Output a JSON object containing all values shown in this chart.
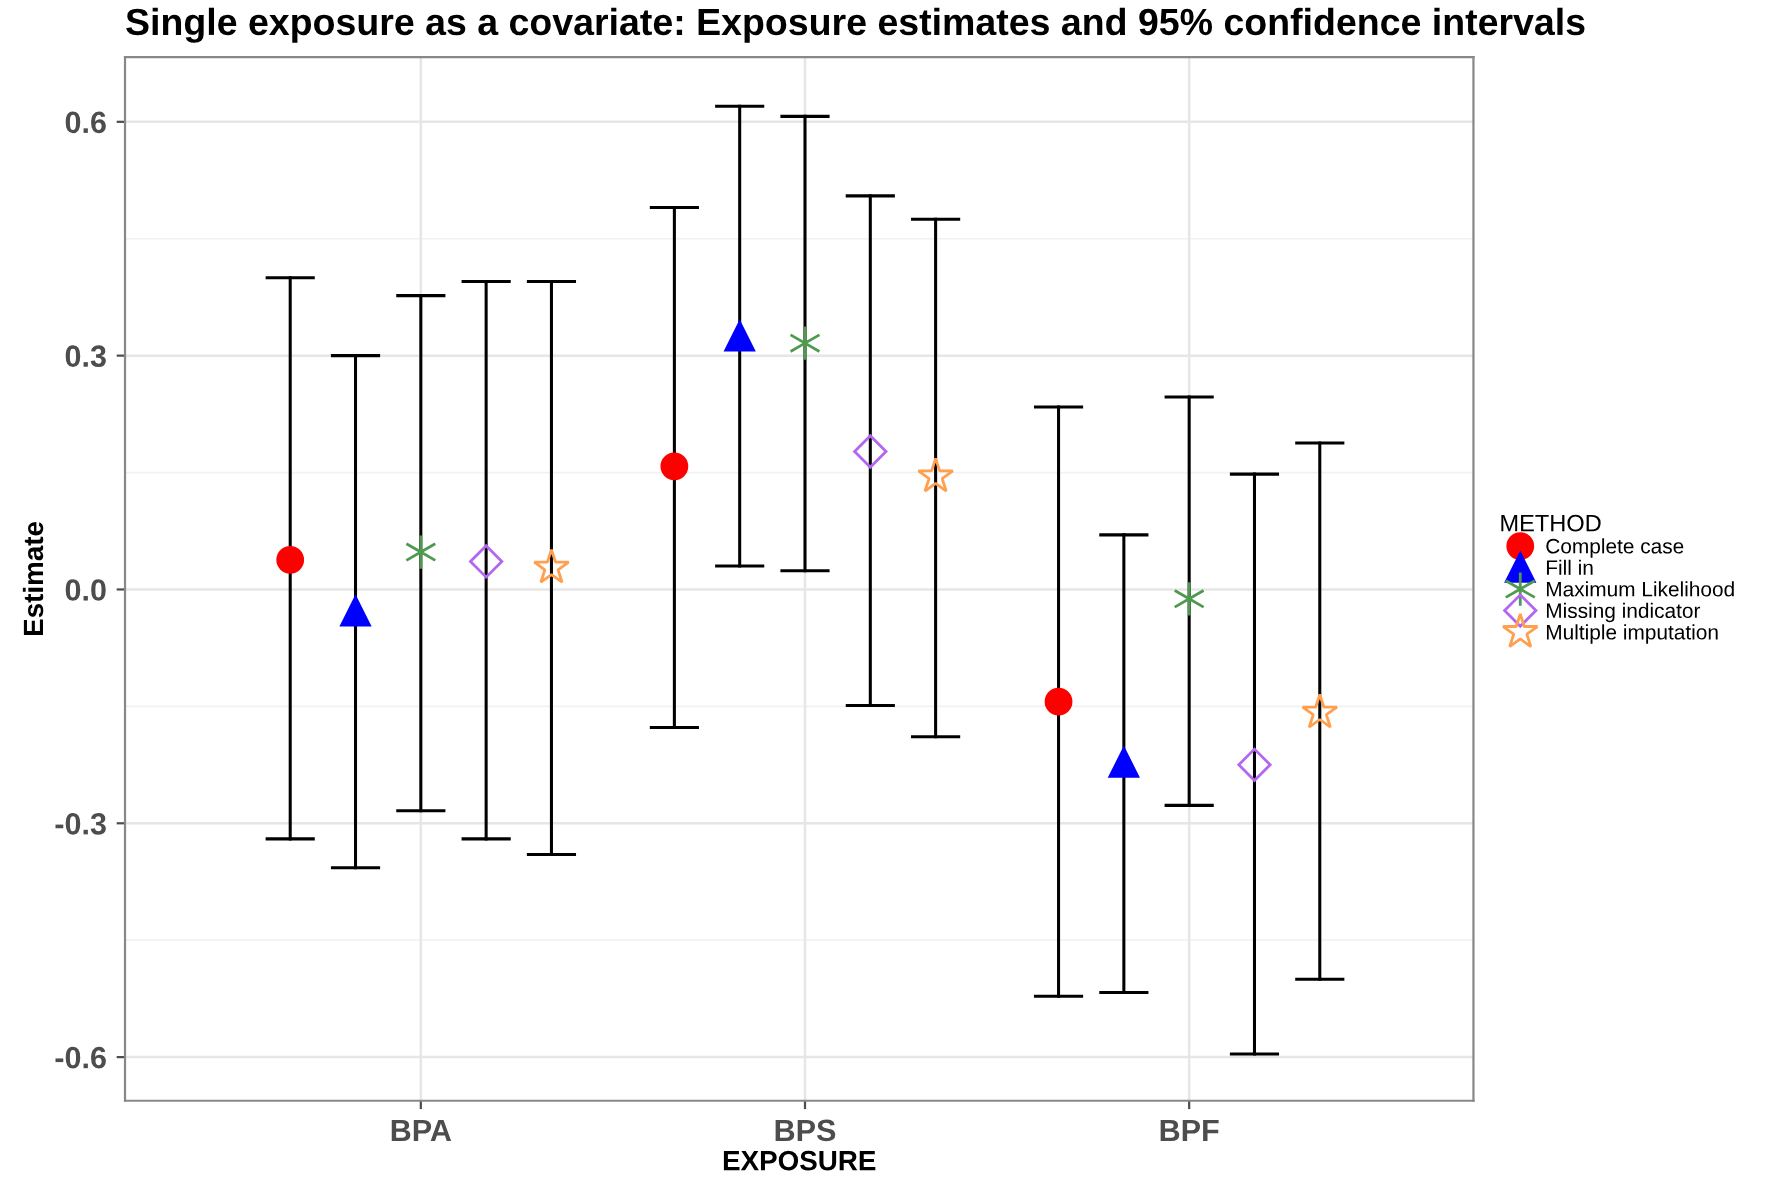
{
  "chart_data": {
    "type": "scatter",
    "title": "Single exposure as a covariate: Exposure estimates and 95% confidence intervals",
    "xlabel": "EXPOSURE",
    "ylabel": "Estimate",
    "legend_title": "METHOD",
    "legend": "right",
    "categories": [
      "BPA",
      "BPS",
      "BPF"
    ],
    "ylim": [
      -0.656,
      0.683
    ],
    "yticks": [
      {
        "value": -0.6,
        "label": "-0.6"
      },
      {
        "value": -0.3,
        "label": "-0.3"
      },
      {
        "value": 0,
        "label": "0.0"
      },
      {
        "value": 0.3,
        "label": "0.3"
      },
      {
        "value": 0.6,
        "label": "0.6"
      }
    ],
    "grid": true,
    "series": [
      {
        "name": "Complete case",
        "color": "#ff0000",
        "marker": "circle",
        "values": [
          0.038,
          0.158,
          -0.144
        ],
        "errors": [
          [
            -0.32,
            0.4
          ],
          [
            -0.177,
            0.49
          ],
          [
            -0.522,
            0.234
          ]
        ]
      },
      {
        "name": "Fill in",
        "color": "#0000ff",
        "marker": "triangle",
        "values": [
          -0.028,
          0.325,
          -0.222
        ],
        "errors": [
          [
            -0.357,
            0.3
          ],
          [
            0.03,
            0.62
          ],
          [
            -0.517,
            0.07
          ]
        ]
      },
      {
        "name": "Maximum Likelihood",
        "color": "#4e9a4e",
        "marker": "cross",
        "values": [
          0.048,
          0.316,
          -0.012
        ],
        "errors": [
          [
            -0.284,
            0.377
          ],
          [
            0.024,
            0.607
          ],
          [
            -0.277,
            0.247
          ]
        ]
      },
      {
        "name": "Missing indicator",
        "color": "#b366f0",
        "marker": "diamond",
        "values": [
          0.036,
          0.177,
          -0.225
        ],
        "errors": [
          [
            -0.32,
            0.395
          ],
          [
            -0.149,
            0.505
          ],
          [
            -0.596,
            0.148
          ]
        ]
      },
      {
        "name": "Multiple imputation",
        "color": "#ffa050",
        "marker": "star",
        "values": [
          0.028,
          0.145,
          -0.158
        ],
        "errors": [
          [
            -0.34,
            0.395
          ],
          [
            -0.189,
            0.475
          ],
          [
            -0.5,
            0.188
          ]
        ]
      }
    ]
  }
}
